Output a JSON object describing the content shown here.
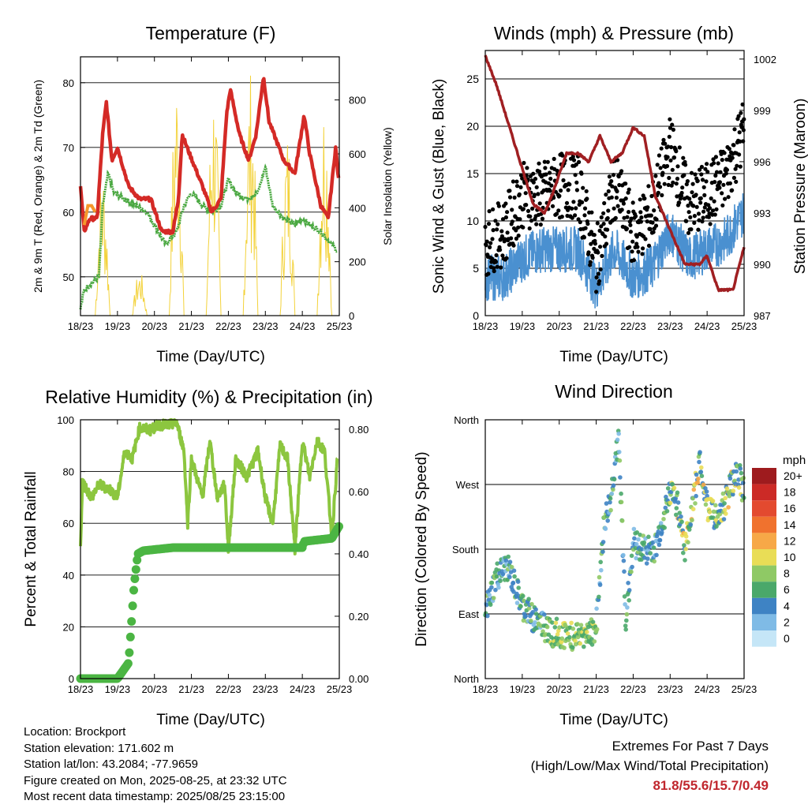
{
  "panels": {
    "temperature": {
      "title": "Temperature (F)",
      "ylabel_left": "2m & 9m T (Red, Orange) & 2m Td (Green)",
      "ylabel_right": "Solar Insolation (Yellow)",
      "xlabel": "Time (Day/UTC)"
    },
    "winds": {
      "title": "Winds (mph) & Pressure (mb)",
      "ylabel_left": "Sonic Wind & Gust (Blue, Black)",
      "ylabel_right": "Station Pressure (Maroon)",
      "xlabel": "Time (Day/UTC)"
    },
    "humidity": {
      "title": "Relative Humidity (%) & Precipitation (in)",
      "ylabel_left": "Percent & Total Rainfall",
      "xlabel": "Time (Day/UTC)"
    },
    "direction": {
      "title": "Wind Direction",
      "ylabel_left": "Direction (Colored By Speed)",
      "xlabel": "Time (Day/UTC)",
      "colorbar_title": "mph"
    }
  },
  "footer": {
    "location": "Location: Brockport",
    "elevation": "Station elevation: 171.602 m",
    "latlon": "Station lat/lon: 43.2084; -77.9659",
    "created": "Figure created on Mon, 2025-08-25, at 23:32 UTC",
    "recent": "Most recent data timestamp: 2025/08/25 23:15:00"
  },
  "extremes": {
    "line1": "Extremes For Past 7 Days",
    "line2": "(High/Low/Max Wind/Total Precipitation)",
    "values": "81.8/55.6/15.7/0.49"
  },
  "chart_data": [
    {
      "id": "temperature",
      "type": "line",
      "x_ticks": [
        "18/23",
        "19/23",
        "20/23",
        "21/23",
        "22/23",
        "23/23",
        "24/23",
        "25/23"
      ],
      "y_ticks": [
        50,
        60,
        70,
        80
      ],
      "ylim": [
        44,
        84
      ],
      "y2_ticks": [
        0,
        200,
        400,
        600,
        800
      ],
      "y2lim": [
        0,
        960
      ],
      "grid": true,
      "series": [
        {
          "color": "#d42a26",
          "day_points": [
            [
              0,
              64
            ],
            [
              0.1,
              57
            ],
            [
              0.25,
              59
            ],
            [
              0.45,
              59
            ],
            [
              0.6,
              72
            ],
            [
              0.7,
              77
            ],
            [
              0.85,
              68
            ],
            [
              1.0,
              70
            ],
            [
              1.3,
              64
            ],
            [
              1.6,
              62
            ],
            [
              1.9,
              62
            ],
            [
              2.2,
              57
            ],
            [
              2.5,
              57
            ],
            [
              2.65,
              62
            ],
            [
              2.75,
              72
            ],
            [
              2.95,
              69
            ],
            [
              3.3,
              64
            ],
            [
              3.55,
              60
            ],
            [
              3.8,
              62
            ],
            [
              3.95,
              75
            ],
            [
              4.05,
              79
            ],
            [
              4.3,
              72
            ],
            [
              4.55,
              68
            ],
            [
              4.75,
              72
            ],
            [
              4.95,
              81
            ],
            [
              5.1,
              74
            ],
            [
              5.5,
              68
            ],
            [
              5.8,
              66
            ],
            [
              6.05,
              75
            ],
            [
              6.2,
              69
            ],
            [
              6.5,
              61
            ],
            [
              6.7,
              59
            ],
            [
              6.9,
              70
            ],
            [
              6.98,
              65
            ]
          ]
        },
        {
          "color": "#f5972b",
          "day_points": [
            [
              0.1,
              58
            ],
            [
              0.2,
              61
            ],
            [
              0.3,
              61
            ],
            [
              0.4,
              60
            ]
          ]
        },
        {
          "color": "#4aa841",
          "day_points": [
            [
              0,
              45
            ],
            [
              0.1,
              48
            ],
            [
              0.3,
              49
            ],
            [
              0.5,
              50
            ],
            [
              0.6,
              61
            ],
            [
              0.75,
              66
            ],
            [
              0.9,
              63
            ],
            [
              1.2,
              62
            ],
            [
              1.5,
              61
            ],
            [
              1.8,
              60
            ],
            [
              2.0,
              58
            ],
            [
              2.3,
              55
            ],
            [
              2.6,
              57
            ],
            [
              2.8,
              61
            ],
            [
              3.0,
              63
            ],
            [
              3.3,
              61
            ],
            [
              3.55,
              60
            ],
            [
              3.8,
              61
            ],
            [
              4.0,
              65
            ],
            [
              4.2,
              63
            ],
            [
              4.5,
              62
            ],
            [
              4.8,
              63
            ],
            [
              5.0,
              67
            ],
            [
              5.2,
              61
            ],
            [
              5.5,
              59
            ],
            [
              5.8,
              58
            ],
            [
              6.0,
              59
            ],
            [
              6.2,
              58
            ],
            [
              6.5,
              57
            ],
            [
              6.8,
              55
            ],
            [
              6.95,
              54
            ]
          ]
        }
      ],
      "insolation_peaks": [
        {
          "day": 0.6,
          "peak": 560
        },
        {
          "day": 1.6,
          "peak": 170
        },
        {
          "day": 2.6,
          "peak": 940
        },
        {
          "day": 3.6,
          "peak": 900
        },
        {
          "day": 4.6,
          "peak": 920
        },
        {
          "day": 5.6,
          "peak": 700
        },
        {
          "day": 6.6,
          "peak": 840
        }
      ]
    },
    {
      "id": "winds",
      "type": "scatter",
      "x_ticks": [
        "18/23",
        "19/23",
        "20/23",
        "21/23",
        "22/23",
        "23/23",
        "24/23",
        "25/23"
      ],
      "y_ticks": [
        0,
        5,
        10,
        15,
        20,
        25
      ],
      "ylim": [
        0,
        28
      ],
      "y2_ticks": [
        987,
        990,
        993,
        996,
        999,
        1002
      ],
      "y2lim": [
        987,
        1002.5
      ],
      "grid": true,
      "series": [
        {
          "name": "Sonic Wind",
          "color": "#4a90d0",
          "day_points": [
            [
              0,
              4
            ],
            [
              0.5,
              4
            ],
            [
              1,
              6
            ],
            [
              1.5,
              7
            ],
            [
              2,
              7
            ],
            [
              2.5,
              7
            ],
            [
              3,
              3
            ],
            [
              3.5,
              7
            ],
            [
              4,
              4
            ],
            [
              4.5,
              5
            ],
            [
              5,
              9
            ],
            [
              5.5,
              6
            ],
            [
              6,
              7
            ],
            [
              6.5,
              8
            ],
            [
              7,
              11
            ]
          ]
        },
        {
          "name": "Gust",
          "color": "#000000",
          "day_points": [
            [
              0,
              7
            ],
            [
              0.5,
              8
            ],
            [
              1,
              12
            ],
            [
              1.5,
              12
            ],
            [
              2,
              13
            ],
            [
              2.5,
              13
            ],
            [
              3,
              5
            ],
            [
              3.5,
              13
            ],
            [
              4,
              8
            ],
            [
              4.5,
              10
            ],
            [
              5,
              17
            ],
            [
              5.5,
              11
            ],
            [
              6,
              12
            ],
            [
              6.5,
              14
            ],
            [
              7,
              19
            ]
          ]
        },
        {
          "name": "Pressure",
          "color": "#a01f22",
          "day_points": [
            [
              0,
              1002.2
            ],
            [
              0.3,
              1000.5
            ],
            [
              0.8,
              997
            ],
            [
              1.3,
              993.5
            ],
            [
              1.6,
              993
            ],
            [
              1.8,
              994
            ],
            [
              2.2,
              996.5
            ],
            [
              2.5,
              996.5
            ],
            [
              2.8,
              996
            ],
            [
              3.1,
              997.5
            ],
            [
              3.4,
              996
            ],
            [
              3.7,
              996.5
            ],
            [
              4.0,
              998
            ],
            [
              4.3,
              997.5
            ],
            [
              4.6,
              994
            ],
            [
              5.0,
              992
            ],
            [
              5.4,
              990
            ],
            [
              5.8,
              990
            ],
            [
              6.0,
              990.5
            ],
            [
              6.3,
              988.5
            ],
            [
              6.7,
              988.5
            ],
            [
              7.0,
              991
            ]
          ]
        }
      ]
    },
    {
      "id": "humidity",
      "type": "line",
      "x_ticks": [
        "18/23",
        "19/23",
        "20/23",
        "21/23",
        "22/23",
        "23/23",
        "24/23",
        "25/23"
      ],
      "y_ticks": [
        0,
        20,
        40,
        60,
        80,
        100
      ],
      "ylim": [
        0,
        100
      ],
      "y2_ticks": [
        "0.00",
        "0.20",
        "0.40",
        "0.60",
        "0.80"
      ],
      "y2lim": [
        0,
        0.83
      ],
      "grid": true,
      "series": [
        {
          "name": "Relative Humidity",
          "color": "#8cc63f",
          "day_points": [
            [
              0,
              50
            ],
            [
              0.05,
              76
            ],
            [
              0.3,
              70
            ],
            [
              0.5,
              75
            ],
            [
              0.8,
              73
            ],
            [
              1.0,
              70
            ],
            [
              1.2,
              88
            ],
            [
              1.4,
              85
            ],
            [
              1.6,
              97
            ],
            [
              1.9,
              96
            ],
            [
              2.1,
              98
            ],
            [
              2.4,
              98
            ],
            [
              2.6,
              99
            ],
            [
              2.8,
              88
            ],
            [
              2.9,
              60
            ],
            [
              3.0,
              85
            ],
            [
              3.3,
              70
            ],
            [
              3.5,
              92
            ],
            [
              3.7,
              70
            ],
            [
              3.9,
              75
            ],
            [
              4.0,
              50
            ],
            [
              4.2,
              85
            ],
            [
              4.5,
              78
            ],
            [
              4.8,
              88
            ],
            [
              5.0,
              70
            ],
            [
              5.2,
              60
            ],
            [
              5.4,
              90
            ],
            [
              5.6,
              85
            ],
            [
              5.8,
              50
            ],
            [
              6.0,
              92
            ],
            [
              6.2,
              78
            ],
            [
              6.4,
              92
            ],
            [
              6.6,
              88
            ],
            [
              6.8,
              55
            ],
            [
              6.95,
              85
            ]
          ]
        },
        {
          "name": "Total Rainfall",
          "color": "#4bb543",
          "day_points": [
            [
              0,
              0
            ],
            [
              1.0,
              0
            ],
            [
              1.3,
              0.05
            ],
            [
              1.45,
              0.3
            ],
            [
              1.55,
              0.4
            ],
            [
              1.7,
              0.41
            ],
            [
              2.5,
              0.42
            ],
            [
              3.0,
              0.42
            ],
            [
              4.0,
              0.42
            ],
            [
              5.0,
              0.42
            ],
            [
              6.0,
              0.42
            ],
            [
              6.05,
              0.44
            ],
            [
              6.8,
              0.45
            ],
            [
              7.0,
              0.49
            ]
          ]
        }
      ]
    },
    {
      "id": "direction",
      "type": "scatter",
      "x_ticks": [
        "18/23",
        "19/23",
        "20/23",
        "21/23",
        "22/23",
        "23/23",
        "24/23",
        "25/23"
      ],
      "y_ticks": [
        "North",
        "East",
        "South",
        "West",
        "North"
      ],
      "ylim": [
        0,
        360
      ],
      "grid": true,
      "colorbar": {
        "labels": [
          "20+",
          "18",
          "16",
          "14",
          "12",
          "10",
          "8",
          "6",
          "4",
          "2",
          "0"
        ],
        "colors": [
          "#9e1b1e",
          "#cc2a26",
          "#e34a2f",
          "#f0722e",
          "#f7a847",
          "#e9dd56",
          "#8fc965",
          "#4aa86a",
          "#3e83c4",
          "#7fbbe6",
          "#c5e6f7"
        ]
      },
      "series": [
        {
          "name": "direction",
          "day_points": [
            [
              0,
              90
            ],
            [
              0.3,
              140
            ],
            [
              0.6,
              155
            ],
            [
              1.0,
              100
            ],
            [
              1.4,
              80
            ],
            [
              1.8,
              65
            ],
            [
              2.2,
              60
            ],
            [
              2.6,
              60
            ],
            [
              3.0,
              70
            ],
            [
              3.2,
              210
            ],
            [
              3.4,
              250
            ],
            [
              3.6,
              340
            ],
            [
              3.8,
              80
            ],
            [
              4.0,
              190
            ],
            [
              4.3,
              180
            ],
            [
              4.6,
              180
            ],
            [
              5.0,
              260
            ],
            [
              5.2,
              240
            ],
            [
              5.4,
              180
            ],
            [
              5.6,
              240
            ],
            [
              5.8,
              300
            ],
            [
              6.0,
              240
            ],
            [
              6.3,
              220
            ],
            [
              6.6,
              260
            ],
            [
              6.8,
              290
            ],
            [
              7.0,
              260
            ]
          ]
        }
      ]
    }
  ]
}
